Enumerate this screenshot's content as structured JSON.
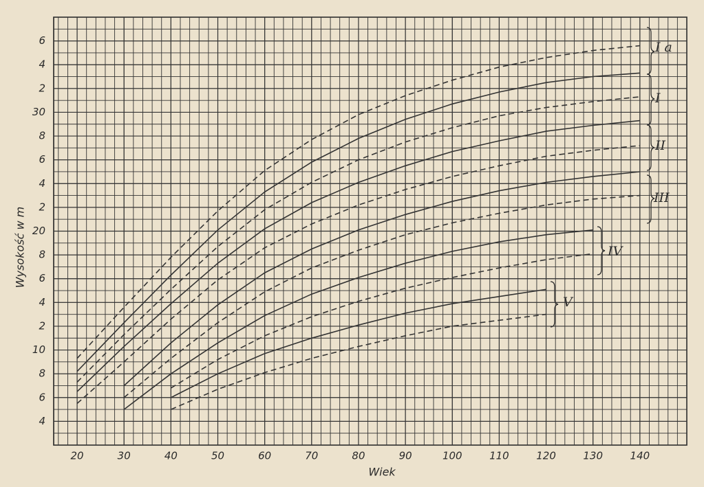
{
  "chart_data": {
    "type": "line",
    "x_label": "Wiek",
    "y_label": "Wysokość w m",
    "grid": true,
    "xlim": [
      15,
      150
    ],
    "ylim": [
      2,
      38
    ],
    "xticks": [
      20,
      30,
      40,
      50,
      60,
      70,
      80,
      90,
      100,
      110,
      120,
      130,
      140
    ],
    "yticks": [
      4,
      6,
      8,
      10,
      {
        "value": 12,
        "label": "2"
      },
      {
        "value": 14,
        "label": "4"
      },
      {
        "value": 16,
        "label": "6"
      },
      {
        "value": 18,
        "label": "8"
      },
      20,
      {
        "value": 22,
        "label": "2"
      },
      {
        "value": 24,
        "label": "4"
      },
      {
        "value": 26,
        "label": "6"
      },
      {
        "value": 28,
        "label": "8"
      },
      30,
      {
        "value": 32,
        "label": "2"
      },
      {
        "value": 34,
        "label": "4"
      },
      {
        "value": 36,
        "label": "6"
      }
    ],
    "x": [
      20,
      30,
      40,
      50,
      60,
      70,
      80,
      90,
      100,
      110,
      120,
      130,
      140
    ],
    "series": [
      {
        "style": "dashed",
        "color": "#333333",
        "values": [
          9.3,
          13.6,
          17.8,
          21.7,
          25.1,
          27.7,
          29.8,
          31.4,
          32.7,
          33.8,
          34.6,
          35.2,
          35.6
        ]
      },
      {
        "style": "solid",
        "color": "#333333",
        "values": [
          8.2,
          12.3,
          16.3,
          20.1,
          23.3,
          25.8,
          27.8,
          29.4,
          30.7,
          31.7,
          32.5,
          33.0,
          33.3
        ]
      },
      {
        "style": "dashed",
        "color": "#333333",
        "values": [
          7.3,
          11.3,
          15.1,
          18.7,
          21.8,
          24.1,
          26.0,
          27.5,
          28.7,
          29.7,
          30.4,
          30.9,
          31.3
        ]
      },
      {
        "style": "solid",
        "color": "#333333",
        "values": [
          6.5,
          10.3,
          13.9,
          17.3,
          20.2,
          22.4,
          24.1,
          25.5,
          26.7,
          27.6,
          28.4,
          28.9,
          29.3
        ]
      },
      {
        "style": "dashed",
        "color": "#333333",
        "values": [
          5.5,
          9.0,
          12.6,
          15.9,
          18.6,
          20.6,
          22.2,
          23.5,
          24.6,
          25.5,
          26.3,
          26.8,
          27.2
        ]
      },
      {
        "style": "solid",
        "color": "#333333",
        "values": [
          null,
          7.0,
          10.6,
          13.8,
          16.5,
          18.5,
          20.1,
          21.4,
          22.5,
          23.4,
          24.1,
          24.6,
          25.0
        ]
      },
      {
        "style": "dashed",
        "color": "#333333",
        "values": [
          null,
          6.0,
          9.3,
          12.3,
          14.9,
          16.9,
          18.4,
          19.7,
          20.7,
          21.5,
          22.2,
          22.7,
          23.0
        ]
      },
      {
        "style": "solid",
        "color": "#333333",
        "values": [
          null,
          5.0,
          8.0,
          10.6,
          12.9,
          14.7,
          16.1,
          17.3,
          18.3,
          19.1,
          19.7,
          20.1,
          null
        ]
      },
      {
        "style": "dashed",
        "color": "#333333",
        "values": [
          null,
          null,
          6.8,
          9.2,
          11.2,
          12.8,
          14.1,
          15.2,
          16.1,
          16.9,
          17.6,
          18.1,
          null
        ]
      },
      {
        "style": "solid",
        "color": "#333333",
        "values": [
          null,
          null,
          6.0,
          8.0,
          9.7,
          11.0,
          12.1,
          13.1,
          13.9,
          14.5,
          15.1,
          null,
          null
        ]
      },
      {
        "style": "dashed",
        "color": "#333333",
        "values": [
          null,
          null,
          5.0,
          6.7,
          8.1,
          9.3,
          10.3,
          11.2,
          12.0,
          12.5,
          13.0,
          null,
          null
        ]
      }
    ],
    "annotations": [
      "I a",
      "I",
      "II",
      "III",
      "IV",
      "V"
    ]
  }
}
